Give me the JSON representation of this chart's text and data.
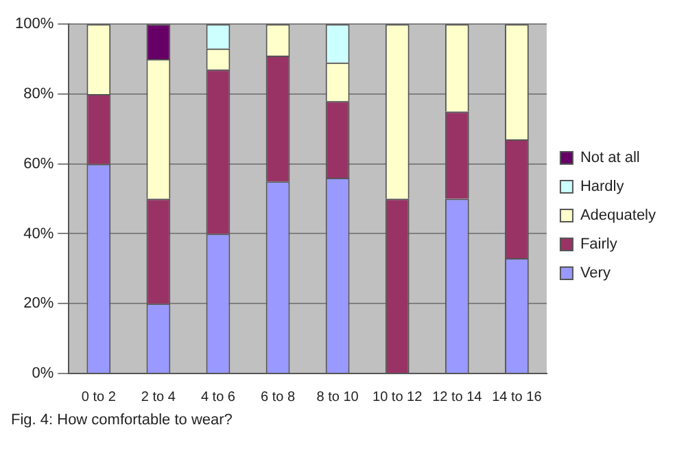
{
  "chart_data": {
    "type": "bar",
    "stacked": true,
    "categories": [
      "0 to 2",
      "2 to 4",
      "4 to 6",
      "6 to 8",
      "8 to 10",
      "10 to 12",
      "12 to 14",
      "14 to 16"
    ],
    "series": [
      {
        "name": "Very",
        "color": "#9999ff",
        "values": [
          60,
          20,
          40,
          55,
          56,
          0,
          50,
          33
        ]
      },
      {
        "name": "Fairly",
        "color": "#993366",
        "values": [
          20,
          30,
          47,
          36,
          22,
          50,
          25,
          34
        ]
      },
      {
        "name": "Adequately",
        "color": "#ffffcc",
        "values": [
          20,
          40,
          6,
          9,
          11,
          50,
          25,
          33
        ]
      },
      {
        "name": "Hardly",
        "color": "#ccffff",
        "values": [
          0,
          0,
          7,
          0,
          11,
          0,
          0,
          0
        ]
      },
      {
        "name": "Not at all",
        "color": "#660066",
        "values": [
          0,
          10,
          0,
          0,
          0,
          0,
          0,
          0
        ]
      }
    ],
    "ylim": [
      0,
      100
    ],
    "yticks": [
      {
        "value": 0,
        "label": "0%"
      },
      {
        "value": 20,
        "label": "20%"
      },
      {
        "value": 40,
        "label": "40%"
      },
      {
        "value": 60,
        "label": "60%"
      },
      {
        "value": 80,
        "label": "80%"
      },
      {
        "value": 100,
        "label": "100%"
      }
    ],
    "grid": "y",
    "legend": "right",
    "annotations": [
      "Fig. 4: How comfortable to wear?"
    ]
  }
}
